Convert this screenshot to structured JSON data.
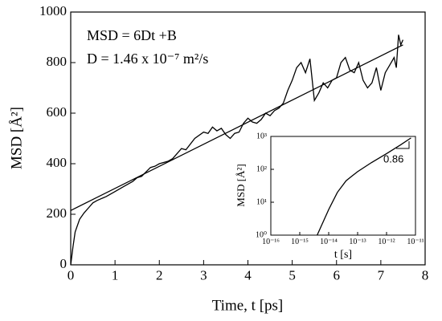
{
  "chart_data": [
    {
      "type": "line",
      "xlabel": "Time, t [ps]",
      "ylabel": "MSD [Å²]",
      "annotations": [
        "MSD = 6Dt +B",
        "D = 1.46 x 10⁻⁷ m²/s"
      ],
      "xlim": [
        0,
        8
      ],
      "ylim": [
        0,
        1000
      ],
      "xticks": [
        0,
        1,
        2,
        3,
        4,
        5,
        6,
        7,
        8
      ],
      "yticks": [
        0,
        200,
        400,
        600,
        800,
        1000
      ],
      "series": [
        {
          "name": "MSD",
          "color": "#000000",
          "x": [
            0,
            0.05,
            0.1,
            0.2,
            0.3,
            0.4,
            0.5,
            0.6,
            0.8,
            1.0,
            1.2,
            1.4,
            1.5,
            1.6,
            1.8,
            1.9,
            2.0,
            2.2,
            2.3,
            2.4,
            2.5,
            2.6,
            2.8,
            3.0,
            3.1,
            3.2,
            3.3,
            3.4,
            3.5,
            3.6,
            3.7,
            3.8,
            3.9,
            4.0,
            4.1,
            4.2,
            4.3,
            4.4,
            4.5,
            4.6,
            4.7,
            4.8,
            4.9,
            5.0,
            5.1,
            5.2,
            5.3,
            5.4,
            5.5,
            5.6,
            5.7,
            5.8,
            5.9,
            6.0,
            6.1,
            6.2,
            6.3,
            6.4,
            6.5,
            6.6,
            6.7,
            6.8,
            6.9,
            7.0,
            7.1,
            7.2,
            7.3,
            7.35,
            7.4,
            7.45,
            7.5
          ],
          "values": [
            0,
            70,
            130,
            180,
            205,
            225,
            245,
            255,
            270,
            290,
            310,
            330,
            345,
            350,
            385,
            390,
            400,
            410,
            420,
            440,
            460,
            455,
            500,
            525,
            520,
            545,
            530,
            540,
            515,
            500,
            520,
            525,
            560,
            580,
            565,
            560,
            575,
            600,
            590,
            610,
            620,
            640,
            690,
            730,
            780,
            800,
            760,
            815,
            650,
            680,
            720,
            700,
            730,
            740,
            800,
            820,
            770,
            760,
            800,
            730,
            700,
            720,
            780,
            690,
            760,
            790,
            820,
            780,
            910,
            870,
            890
          ]
        },
        {
          "name": "Fit",
          "color": "#000000",
          "x": [
            0,
            7.5
          ],
          "values": [
            215,
            870
          ]
        }
      ]
    },
    {
      "type": "line",
      "xscale": "log",
      "yscale": "log",
      "xlabel": "t [s]",
      "ylabel": "MSD [Å²]",
      "annotations": [
        "0.86"
      ],
      "xlim": [
        1e-16,
        1e-11
      ],
      "ylim": [
        1,
        1000
      ],
      "xticks": [
        {
          "value": 1e-16,
          "label": "10⁻¹⁶"
        },
        {
          "value": 1e-15,
          "label": "10⁻¹⁵"
        },
        {
          "value": 1e-14,
          "label": "10⁻¹⁴"
        },
        {
          "value": 1e-13,
          "label": "10⁻¹³"
        },
        {
          "value": 1e-12,
          "label": "10⁻¹²"
        },
        {
          "value": 1e-11,
          "label": "10⁻¹¹"
        }
      ],
      "yticks": [
        {
          "value": 1,
          "label": "10⁰"
        },
        {
          "value": 10,
          "label": "10¹"
        },
        {
          "value": 100,
          "label": "10²"
        },
        {
          "value": 1000,
          "label": "10³"
        }
      ],
      "series": [
        {
          "name": "MSD",
          "color": "#000000",
          "x": [
            4e-15,
            1e-14,
            2e-14,
            4e-14,
            6e-14,
            1e-13,
            3e-13,
            1e-12,
            3e-12,
            7e-12
          ],
          "values": [
            1,
            6,
            20,
            45,
            60,
            85,
            160,
            300,
            550,
            900
          ]
        }
      ]
    }
  ]
}
